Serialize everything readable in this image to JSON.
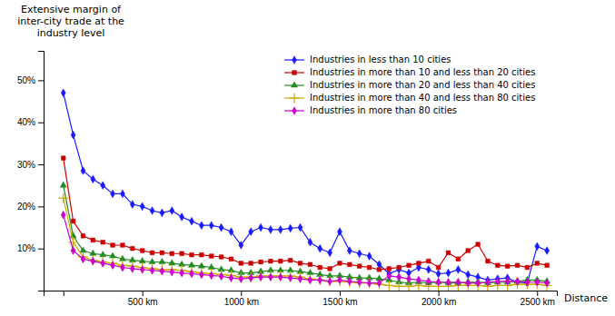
{
  "chart_data": {
    "type": "line",
    "title": "Extensive margin of\ninter-city trade at the\nindustry level",
    "xlabel": "Distance",
    "xlim": [
      0,
      2600
    ],
    "ylim": [
      0,
      0.57
    ],
    "xticks": [
      {
        "value": 100,
        "label": null
      },
      {
        "value": 500,
        "label": "500 km"
      },
      {
        "value": 1000,
        "label": "1000 km"
      },
      {
        "value": 1500,
        "label": "1500 km"
      },
      {
        "value": 2000,
        "label": "2000 km"
      },
      {
        "value": 2500,
        "label": "2500 km"
      }
    ],
    "yticks": [
      {
        "value": 0.1,
        "label": "10%"
      },
      {
        "value": 0.2,
        "label": "20%"
      },
      {
        "value": 0.3,
        "label": "30%"
      },
      {
        "value": 0.4,
        "label": "40%"
      },
      {
        "value": 0.5,
        "label": "50%"
      }
    ],
    "grid": false,
    "legend": "upper right",
    "x": [
      100,
      150,
      200,
      250,
      300,
      350,
      400,
      450,
      500,
      550,
      600,
      650,
      700,
      750,
      800,
      850,
      900,
      950,
      1000,
      1050,
      1100,
      1150,
      1200,
      1250,
      1300,
      1350,
      1400,
      1450,
      1500,
      1550,
      1600,
      1650,
      1700,
      1750,
      1800,
      1850,
      1900,
      1950,
      2000,
      2050,
      2100,
      2150,
      2200,
      2250,
      2300,
      2350,
      2400,
      2450,
      2500,
      2550
    ],
    "series": [
      {
        "name": "Industries in less than 10 cities",
        "color": "#1a1aff",
        "marker": "diamond",
        "values": [
          0.47,
          0.37,
          0.285,
          0.265,
          0.25,
          0.23,
          0.23,
          0.205,
          0.2,
          0.19,
          0.185,
          0.19,
          0.175,
          0.165,
          0.155,
          0.155,
          0.15,
          0.14,
          0.108,
          0.14,
          0.15,
          0.145,
          0.145,
          0.148,
          0.15,
          0.115,
          0.1,
          0.09,
          0.14,
          0.095,
          0.088,
          0.082,
          0.062,
          0.04,
          0.05,
          0.042,
          0.055,
          0.05,
          0.04,
          0.042,
          0.05,
          0.038,
          0.032,
          0.025,
          0.028,
          0.03,
          0.02,
          0.018,
          0.105,
          0.095
        ]
      },
      {
        "name": "Industries in more than 10 and less than 20 cities",
        "color": "#cc0000",
        "marker": "square",
        "values": [
          0.315,
          0.165,
          0.13,
          0.12,
          0.115,
          0.108,
          0.108,
          0.1,
          0.095,
          0.09,
          0.09,
          0.088,
          0.088,
          0.085,
          0.085,
          0.082,
          0.08,
          0.075,
          0.065,
          0.065,
          0.068,
          0.07,
          0.07,
          0.072,
          0.065,
          0.062,
          0.055,
          0.052,
          0.065,
          0.062,
          0.058,
          0.055,
          0.05,
          0.052,
          0.055,
          0.06,
          0.065,
          0.07,
          0.055,
          0.09,
          0.075,
          0.095,
          0.11,
          0.07,
          0.06,
          0.058,
          0.06,
          0.055,
          0.065,
          0.06
        ]
      },
      {
        "name": "Industries in more than 20 and less than 40 cities",
        "color": "#228B22",
        "marker": "triangle",
        "values": [
          0.25,
          0.13,
          0.095,
          0.088,
          0.085,
          0.082,
          0.075,
          0.072,
          0.07,
          0.068,
          0.068,
          0.065,
          0.062,
          0.06,
          0.058,
          0.055,
          0.05,
          0.048,
          0.042,
          0.042,
          0.045,
          0.048,
          0.048,
          0.048,
          0.045,
          0.042,
          0.038,
          0.035,
          0.035,
          0.032,
          0.03,
          0.03,
          0.028,
          0.025,
          0.02,
          0.018,
          0.02,
          0.018,
          0.02,
          0.018,
          0.018,
          0.02,
          0.02,
          0.018,
          0.02,
          0.02,
          0.022,
          0.025,
          0.025,
          0.022
        ]
      },
      {
        "name": "Industries in more than 40 and less than 80 cities",
        "color": "#ccaa00",
        "marker": "plus",
        "values": [
          0.22,
          0.115,
          0.08,
          0.072,
          0.068,
          0.065,
          0.06,
          0.058,
          0.055,
          0.052,
          0.05,
          0.05,
          0.048,
          0.045,
          0.042,
          0.04,
          0.038,
          0.036,
          0.032,
          0.032,
          0.035,
          0.035,
          0.035,
          0.035,
          0.032,
          0.028,
          0.025,
          0.022,
          0.022,
          0.02,
          0.018,
          0.018,
          0.015,
          0.012,
          0.01,
          0.01,
          0.012,
          0.01,
          0.01,
          0.01,
          0.012,
          0.012,
          0.012,
          0.01,
          0.012,
          0.012,
          0.015,
          0.015,
          0.015,
          0.012
        ]
      },
      {
        "name": "Industries in more than 80 cities",
        "color": "#cc00cc",
        "marker": "diamond",
        "values": [
          0.18,
          0.095,
          0.075,
          0.07,
          0.065,
          0.06,
          0.055,
          0.052,
          0.05,
          0.048,
          0.046,
          0.044,
          0.042,
          0.04,
          0.038,
          0.036,
          0.034,
          0.03,
          0.028,
          0.03,
          0.032,
          0.032,
          0.032,
          0.03,
          0.028,
          0.025,
          0.025,
          0.022,
          0.025,
          0.022,
          0.02,
          0.018,
          0.018,
          0.035,
          0.032,
          0.028,
          0.025,
          0.022,
          0.02,
          0.02,
          0.02,
          0.018,
          0.018,
          0.02,
          0.022,
          0.022,
          0.022,
          0.02,
          0.02,
          0.018
        ]
      }
    ]
  }
}
